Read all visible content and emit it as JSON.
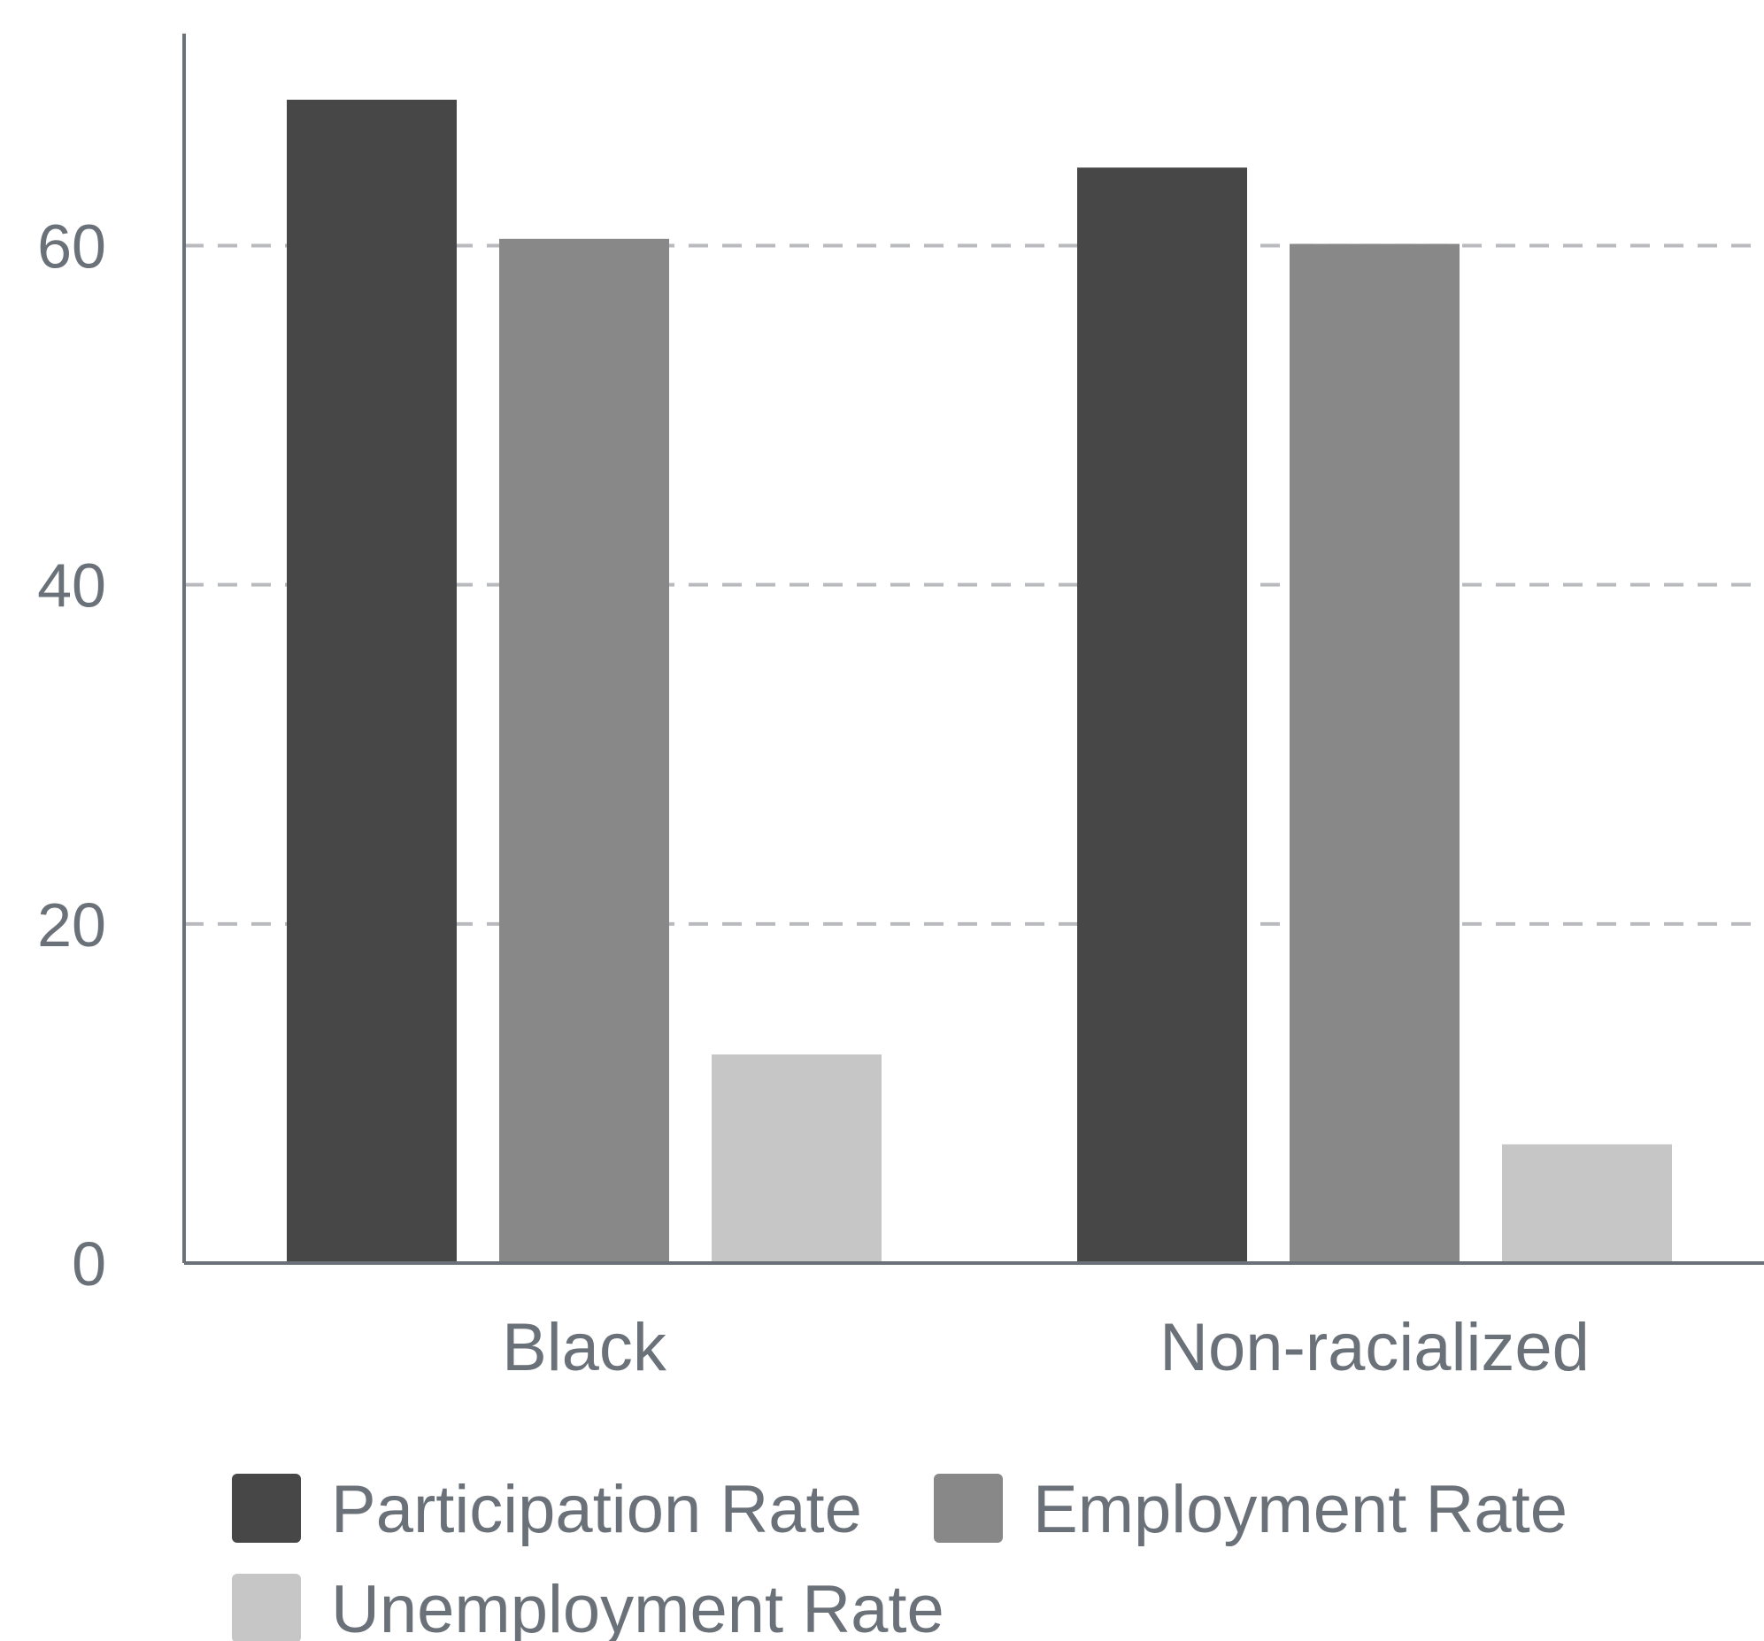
{
  "chart_data": {
    "type": "bar",
    "categories": [
      "Black",
      "Non-racialized"
    ],
    "series": [
      {
        "name": "Participation Rate",
        "values": [
          68.6,
          64.6
        ],
        "color": "#474747"
      },
      {
        "name": "Employment Rate",
        "values": [
          60.4,
          60.1
        ],
        "color": "#888888"
      },
      {
        "name": "Unemployment Rate",
        "values": [
          12.3,
          7.0
        ],
        "color": "#c6c6c6"
      }
    ],
    "ylim": [
      0,
      72.5
    ],
    "yticks": [
      0,
      20,
      40,
      60
    ],
    "grid": true,
    "legend_position": "bottom",
    "axis_color": "#6b7178",
    "grid_color": "#b8babd",
    "text_color": "#6b7178"
  }
}
